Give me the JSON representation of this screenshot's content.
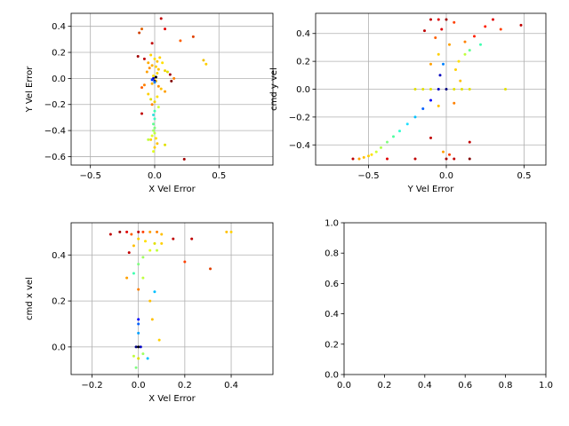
{
  "chart_data": [
    {
      "id": "p1",
      "type": "scatter",
      "xlabel": "X Vel Error",
      "ylabel": "Y Vel Error",
      "xlim": [
        -0.65,
        0.92
      ],
      "ylim": [
        -0.665,
        0.5
      ],
      "xticks": [
        -0.5,
        0.0,
        0.5
      ],
      "xtick_labels": [
        "−0.5",
        "0.0",
        "0.5"
      ],
      "yticks": [
        -0.6,
        -0.4,
        -0.2,
        0.0,
        0.2,
        0.4
      ],
      "ytick_labels": [
        "−0.6",
        "−0.4",
        "−0.2",
        "0.0",
        "0.2",
        "0.4"
      ],
      "grid": true,
      "points": [
        {
          "x": 0.05,
          "y": 0.46,
          "color": "#c00000"
        },
        {
          "x": -0.1,
          "y": 0.38,
          "color": "#e06000"
        },
        {
          "x": -0.12,
          "y": 0.35,
          "color": "#d04000"
        },
        {
          "x": 0.08,
          "y": 0.38,
          "color": "#e00000"
        },
        {
          "x": 0.3,
          "y": 0.32,
          "color": "#e04000"
        },
        {
          "x": 0.2,
          "y": 0.29,
          "color": "#ff6000"
        },
        {
          "x": -0.02,
          "y": 0.27,
          "color": "#c00000"
        },
        {
          "x": 0.38,
          "y": 0.14,
          "color": "#f0c000"
        },
        {
          "x": 0.4,
          "y": 0.11,
          "color": "#ffd000"
        },
        {
          "x": -0.13,
          "y": 0.17,
          "color": "#a00000"
        },
        {
          "x": -0.08,
          "y": 0.15,
          "color": "#c00000"
        },
        {
          "x": -0.05,
          "y": 0.12,
          "color": "#ffaa00"
        },
        {
          "x": -0.03,
          "y": 0.18,
          "color": "#ffd000"
        },
        {
          "x": 0.0,
          "y": 0.15,
          "color": "#ffe000"
        },
        {
          "x": 0.02,
          "y": 0.13,
          "color": "#ffc000"
        },
        {
          "x": 0.04,
          "y": 0.16,
          "color": "#ffd000"
        },
        {
          "x": 0.06,
          "y": 0.12,
          "color": "#ffe000"
        },
        {
          "x": -0.02,
          "y": 0.1,
          "color": "#ffb000"
        },
        {
          "x": 0.01,
          "y": 0.09,
          "color": "#ffd000"
        },
        {
          "x": 0.03,
          "y": 0.07,
          "color": "#ffc000"
        },
        {
          "x": -0.04,
          "y": 0.08,
          "color": "#ff9000"
        },
        {
          "x": 0.08,
          "y": 0.06,
          "color": "#f0d000"
        },
        {
          "x": 0.1,
          "y": 0.05,
          "color": "#e0e000"
        },
        {
          "x": -0.06,
          "y": 0.05,
          "color": "#ffa000"
        },
        {
          "x": 0.12,
          "y": 0.03,
          "color": "#a00000"
        },
        {
          "x": 0.15,
          "y": 0.0,
          "color": "#ff8000"
        },
        {
          "x": 0.13,
          "y": -0.02,
          "color": "#800000"
        },
        {
          "x": 0.02,
          "y": 0.04,
          "color": "#ffd000"
        },
        {
          "x": -0.01,
          "y": 0.02,
          "color": "#ffe000"
        },
        {
          "x": 0.0,
          "y": 0.0,
          "color": "#ffd000"
        },
        {
          "x": 0.01,
          "y": -0.02,
          "color": "#ffc000"
        },
        {
          "x": -0.02,
          "y": -0.04,
          "color": "#ffb000"
        },
        {
          "x": 0.03,
          "y": -0.06,
          "color": "#ff9000"
        },
        {
          "x": -0.08,
          "y": -0.05,
          "color": "#ff8000"
        },
        {
          "x": -0.1,
          "y": -0.07,
          "color": "#ff6000"
        },
        {
          "x": 0.05,
          "y": -0.08,
          "color": "#ffc000"
        },
        {
          "x": 0.08,
          "y": -0.1,
          "color": "#ffa000"
        },
        {
          "x": -0.05,
          "y": -0.12,
          "color": "#ffd000"
        },
        {
          "x": 0.02,
          "y": -0.14,
          "color": "#ffe000"
        },
        {
          "x": -0.03,
          "y": -0.16,
          "color": "#e0e000"
        },
        {
          "x": 0.0,
          "y": -0.18,
          "color": "#f0d000"
        },
        {
          "x": -0.02,
          "y": -0.2,
          "color": "#ff8000"
        },
        {
          "x": 0.03,
          "y": -0.22,
          "color": "#d0ff40"
        },
        {
          "x": -0.1,
          "y": -0.27,
          "color": "#c00000"
        },
        {
          "x": 0.0,
          "y": -0.02,
          "color": "#000080"
        },
        {
          "x": -0.01,
          "y": 0.0,
          "color": "#0000c0"
        },
        {
          "x": 0.01,
          "y": 0.01,
          "color": "#000000"
        },
        {
          "x": -0.02,
          "y": -0.01,
          "color": "#0030ff"
        },
        {
          "x": 0.0,
          "y": -0.03,
          "color": "#0080ff"
        },
        {
          "x": 0.0,
          "y": -0.25,
          "color": "#40ffb0"
        },
        {
          "x": -0.01,
          "y": -0.28,
          "color": "#30e0e0"
        },
        {
          "x": 0.0,
          "y": -0.31,
          "color": "#40ffc0"
        },
        {
          "x": -0.01,
          "y": -0.35,
          "color": "#60ff90"
        },
        {
          "x": 0.0,
          "y": -0.38,
          "color": "#80ff80"
        },
        {
          "x": -0.01,
          "y": -0.4,
          "color": "#a0ff60"
        },
        {
          "x": 0.0,
          "y": -0.42,
          "color": "#c0ff40"
        },
        {
          "x": -0.02,
          "y": -0.44,
          "color": "#e0ff20"
        },
        {
          "x": 0.01,
          "y": -0.46,
          "color": "#ffe000"
        },
        {
          "x": -0.03,
          "y": -0.47,
          "color": "#ffd000"
        },
        {
          "x": 0.02,
          "y": -0.5,
          "color": "#ffc000"
        },
        {
          "x": -0.05,
          "y": -0.47,
          "color": "#c0ff40"
        },
        {
          "x": 0.08,
          "y": -0.51,
          "color": "#e0e000"
        },
        {
          "x": 0.0,
          "y": -0.53,
          "color": "#ffd000"
        },
        {
          "x": -0.01,
          "y": -0.56,
          "color": "#e0ff20"
        },
        {
          "x": 0.23,
          "y": -0.62,
          "color": "#a00000"
        }
      ]
    },
    {
      "id": "p2",
      "type": "scatter",
      "xlabel": "Y Vel Error",
      "ylabel": "cmd y vel",
      "xlim": [
        -0.84,
        0.64
      ],
      "ylim": [
        -0.545,
        0.545
      ],
      "xticks": [
        -0.5,
        0.0,
        0.5
      ],
      "xtick_labels": [
        "−0.5",
        "0.0",
        "0.5"
      ],
      "yticks": [
        -0.4,
        -0.2,
        0.0,
        0.2,
        0.4
      ],
      "ytick_labels": [
        "−0.4",
        "−0.2",
        "0.0",
        "0.2",
        "0.4"
      ],
      "grid": true,
      "points": [
        {
          "x": -0.1,
          "y": 0.5,
          "color": "#c00000"
        },
        {
          "x": -0.05,
          "y": 0.5,
          "color": "#e00000"
        },
        {
          "x": 0.0,
          "y": 0.5,
          "color": "#a00000"
        },
        {
          "x": 0.05,
          "y": 0.48,
          "color": "#ff4000"
        },
        {
          "x": 0.3,
          "y": 0.5,
          "color": "#e00000"
        },
        {
          "x": 0.48,
          "y": 0.46,
          "color": "#c00000"
        },
        {
          "x": 0.25,
          "y": 0.45,
          "color": "#ff2000"
        },
        {
          "x": -0.14,
          "y": 0.42,
          "color": "#c00000"
        },
        {
          "x": -0.03,
          "y": 0.43,
          "color": "#e00000"
        },
        {
          "x": 0.35,
          "y": 0.43,
          "color": "#ff4000"
        },
        {
          "x": 0.18,
          "y": 0.38,
          "color": "#ff2000"
        },
        {
          "x": -0.07,
          "y": 0.37,
          "color": "#ff6000"
        },
        {
          "x": 0.12,
          "y": 0.34,
          "color": "#ff8000"
        },
        {
          "x": 0.02,
          "y": 0.32,
          "color": "#ffa000"
        },
        {
          "x": 0.22,
          "y": 0.32,
          "color": "#40ffb0"
        },
        {
          "x": 0.15,
          "y": 0.28,
          "color": "#60ff90"
        },
        {
          "x": 0.12,
          "y": 0.25,
          "color": "#c0ff40"
        },
        {
          "x": -0.05,
          "y": 0.25,
          "color": "#ffd000"
        },
        {
          "x": 0.08,
          "y": 0.2,
          "color": "#ffe000"
        },
        {
          "x": -0.1,
          "y": 0.18,
          "color": "#ffa000"
        },
        {
          "x": -0.02,
          "y": 0.18,
          "color": "#0080ff"
        },
        {
          "x": 0.06,
          "y": 0.14,
          "color": "#ffd000"
        },
        {
          "x": -0.04,
          "y": 0.1,
          "color": "#0000c0"
        },
        {
          "x": 0.09,
          "y": 0.06,
          "color": "#ffc000"
        },
        {
          "x": -0.2,
          "y": 0.0,
          "color": "#e0e000"
        },
        {
          "x": -0.15,
          "y": 0.0,
          "color": "#e0e000"
        },
        {
          "x": -0.1,
          "y": 0.0,
          "color": "#e0e000"
        },
        {
          "x": -0.05,
          "y": 0.0,
          "color": "#0000c0"
        },
        {
          "x": 0.0,
          "y": 0.0,
          "color": "#000080"
        },
        {
          "x": 0.05,
          "y": 0.0,
          "color": "#e0e000"
        },
        {
          "x": 0.1,
          "y": 0.0,
          "color": "#e0e000"
        },
        {
          "x": 0.15,
          "y": 0.0,
          "color": "#e0e000"
        },
        {
          "x": 0.38,
          "y": 0.0,
          "color": "#e0e000"
        },
        {
          "x": -0.05,
          "y": -0.12,
          "color": "#ffc000"
        },
        {
          "x": 0.05,
          "y": -0.1,
          "color": "#ff8000"
        },
        {
          "x": -0.1,
          "y": -0.08,
          "color": "#0000ff"
        },
        {
          "x": -0.15,
          "y": -0.14,
          "color": "#0060ff"
        },
        {
          "x": -0.2,
          "y": -0.2,
          "color": "#00c0ff"
        },
        {
          "x": -0.25,
          "y": -0.25,
          "color": "#20e0ff"
        },
        {
          "x": -0.3,
          "y": -0.3,
          "color": "#30ffd0"
        },
        {
          "x": -0.34,
          "y": -0.34,
          "color": "#50ffa0"
        },
        {
          "x": -0.38,
          "y": -0.38,
          "color": "#80ff80"
        },
        {
          "x": -0.42,
          "y": -0.42,
          "color": "#b0ff50"
        },
        {
          "x": -0.45,
          "y": -0.45,
          "color": "#d0ff30"
        },
        {
          "x": -0.48,
          "y": -0.47,
          "color": "#ffe000"
        },
        {
          "x": -0.5,
          "y": -0.48,
          "color": "#ffd000"
        },
        {
          "x": -0.53,
          "y": -0.49,
          "color": "#ffc000"
        },
        {
          "x": -0.56,
          "y": -0.5,
          "color": "#ffa000"
        },
        {
          "x": -0.6,
          "y": -0.5,
          "color": "#c00000"
        },
        {
          "x": -0.38,
          "y": -0.5,
          "color": "#e00000"
        },
        {
          "x": -0.2,
          "y": -0.5,
          "color": "#c00000"
        },
        {
          "x": 0.0,
          "y": -0.5,
          "color": "#a00000"
        },
        {
          "x": 0.05,
          "y": -0.5,
          "color": "#c00000"
        },
        {
          "x": 0.15,
          "y": -0.5,
          "color": "#800000"
        },
        {
          "x": 0.15,
          "y": -0.38,
          "color": "#c00000"
        },
        {
          "x": -0.1,
          "y": -0.35,
          "color": "#c00000"
        },
        {
          "x": 0.02,
          "y": -0.47,
          "color": "#ff4000"
        },
        {
          "x": -0.02,
          "y": -0.45,
          "color": "#ffa000"
        }
      ]
    },
    {
      "id": "p3",
      "type": "scatter",
      "xlabel": "X Vel Error",
      "ylabel": "cmd x vel",
      "xlim": [
        -0.29,
        0.58
      ],
      "ylim": [
        -0.12,
        0.54
      ],
      "xticks": [
        -0.2,
        0.0,
        0.2,
        0.4
      ],
      "xtick_labels": [
        "−0.2",
        "0.0",
        "0.2",
        "0.4"
      ],
      "yticks": [
        0.0,
        0.2,
        0.4
      ],
      "ytick_labels": [
        "0.0",
        "0.2",
        "0.4"
      ],
      "grid": true,
      "points": [
        {
          "x": -0.12,
          "y": 0.49,
          "color": "#c00000"
        },
        {
          "x": -0.08,
          "y": 0.5,
          "color": "#a00000"
        },
        {
          "x": -0.05,
          "y": 0.5,
          "color": "#e00000"
        },
        {
          "x": -0.03,
          "y": 0.49,
          "color": "#ff6000"
        },
        {
          "x": 0.0,
          "y": 0.5,
          "color": "#c00000"
        },
        {
          "x": 0.02,
          "y": 0.5,
          "color": "#ff4000"
        },
        {
          "x": 0.05,
          "y": 0.5,
          "color": "#ffa000"
        },
        {
          "x": 0.08,
          "y": 0.5,
          "color": "#ff8000"
        },
        {
          "x": 0.1,
          "y": 0.49,
          "color": "#ffc000"
        },
        {
          "x": 0.15,
          "y": 0.47,
          "color": "#c00000"
        },
        {
          "x": 0.23,
          "y": 0.47,
          "color": "#c00000"
        },
        {
          "x": 0.38,
          "y": 0.5,
          "color": "#ffc000"
        },
        {
          "x": 0.4,
          "y": 0.5,
          "color": "#ffd000"
        },
        {
          "x": 0.0,
          "y": 0.47,
          "color": "#ffd000"
        },
        {
          "x": 0.03,
          "y": 0.46,
          "color": "#ffe000"
        },
        {
          "x": 0.07,
          "y": 0.45,
          "color": "#e0e000"
        },
        {
          "x": 0.1,
          "y": 0.45,
          "color": "#ffd000"
        },
        {
          "x": -0.02,
          "y": 0.44,
          "color": "#ffc000"
        },
        {
          "x": 0.05,
          "y": 0.42,
          "color": "#e0ff20"
        },
        {
          "x": 0.08,
          "y": 0.42,
          "color": "#c0ff40"
        },
        {
          "x": -0.04,
          "y": 0.41,
          "color": "#c00000"
        },
        {
          "x": 0.02,
          "y": 0.39,
          "color": "#a0ff60"
        },
        {
          "x": 0.0,
          "y": 0.36,
          "color": "#80ff80"
        },
        {
          "x": 0.2,
          "y": 0.37,
          "color": "#ff4000"
        },
        {
          "x": 0.31,
          "y": 0.34,
          "color": "#e04000"
        },
        {
          "x": -0.02,
          "y": 0.32,
          "color": "#40ffb0"
        },
        {
          "x": 0.02,
          "y": 0.3,
          "color": "#c0ff40"
        },
        {
          "x": -0.05,
          "y": 0.3,
          "color": "#ffa000"
        },
        {
          "x": 0.0,
          "y": 0.25,
          "color": "#ff8000"
        },
        {
          "x": 0.07,
          "y": 0.24,
          "color": "#00c0ff"
        },
        {
          "x": 0.05,
          "y": 0.2,
          "color": "#ffc000"
        },
        {
          "x": 0.0,
          "y": 0.12,
          "color": "#0000ff"
        },
        {
          "x": 0.0,
          "y": 0.1,
          "color": "#0060ff"
        },
        {
          "x": 0.06,
          "y": 0.12,
          "color": "#ffc000"
        },
        {
          "x": 0.0,
          "y": 0.06,
          "color": "#00a0ff"
        },
        {
          "x": 0.09,
          "y": 0.03,
          "color": "#ffd000"
        },
        {
          "x": -0.01,
          "y": 0.0,
          "color": "#000080"
        },
        {
          "x": 0.0,
          "y": 0.0,
          "color": "#000000"
        },
        {
          "x": 0.01,
          "y": 0.0,
          "color": "#0000c0"
        },
        {
          "x": -0.02,
          "y": -0.04,
          "color": "#c0ff40"
        },
        {
          "x": 0.0,
          "y": -0.05,
          "color": "#e0e000"
        },
        {
          "x": 0.04,
          "y": -0.05,
          "color": "#00c0ff"
        },
        {
          "x": -0.01,
          "y": -0.09,
          "color": "#80ff80"
        },
        {
          "x": 0.02,
          "y": -0.03,
          "color": "#a0ff60"
        }
      ]
    },
    {
      "id": "p4",
      "type": "scatter",
      "xlabel": "",
      "ylabel": "",
      "xlim": [
        0,
        1
      ],
      "ylim": [
        0,
        1
      ],
      "xticks": [
        0.0,
        0.2,
        0.4,
        0.6,
        0.8,
        1.0
      ],
      "xtick_labels": [
        "0.0",
        "0.2",
        "0.4",
        "0.6",
        "0.8",
        "1.0"
      ],
      "yticks": [
        0.0,
        0.2,
        0.4,
        0.6,
        0.8,
        1.0
      ],
      "ytick_labels": [
        "0.0",
        "0.2",
        "0.4",
        "0.6",
        "0.8",
        "1.0"
      ],
      "grid": false,
      "points": []
    }
  ]
}
